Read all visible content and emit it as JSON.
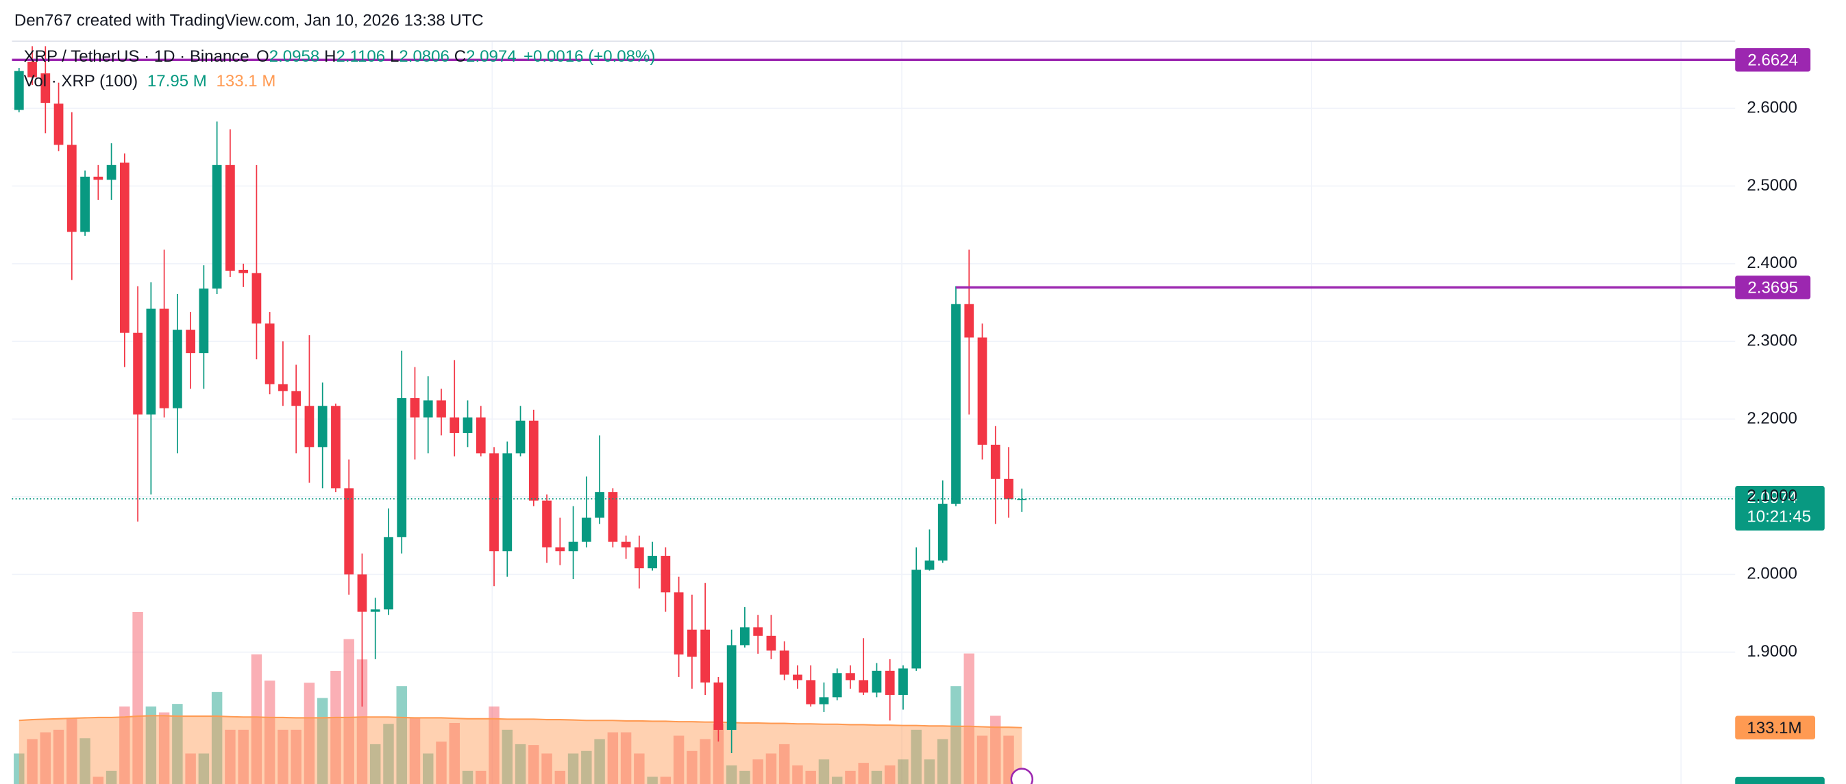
{
  "header": {
    "attribution": "Den767 created with TradingView.com, Jan 10, 2026 13:38 UTC"
  },
  "chart_data": {
    "type": "candlestick",
    "symbol": "XRP / TetherUS · 1D · Binance",
    "ohlc_letters": [
      "O",
      "H",
      "L",
      "C"
    ],
    "change": "+0.0016 (+0.08%)",
    "up_color": "#089981",
    "down_color": "#f23645",
    "open": [
      2.598,
      2.66,
      2.645,
      2.606,
      2.553,
      2.441,
      2.512,
      2.508,
      2.53,
      2.311,
      2.206,
      2.342,
      2.214,
      2.315,
      2.285,
      2.368,
      2.527,
      2.392,
      2.388,
      2.323,
      2.245,
      2.236,
      2.217,
      2.164,
      2.217,
      2.111,
      2.0,
      1.952,
      1.955,
      2.048,
      2.227,
      2.202,
      2.224,
      2.202,
      2.182,
      2.202,
      2.156,
      2.03,
      2.156,
      2.198,
      2.095,
      2.035,
      2.03,
      2.042,
      2.073,
      2.106,
      2.042,
      2.035,
      2.008,
      2.024,
      1.977,
      1.929,
      1.929,
      1.861,
      1.8,
      1.909,
      1.932,
      1.921,
      1.902,
      1.871,
      1.864,
      1.833,
      1.842,
      1.873,
      1.864,
      1.848,
      1.876,
      1.845,
      1.879,
      2.006,
      2.018,
      2.091,
      2.348,
      2.305,
      2.167,
      2.123,
      2.0958
    ],
    "high": [
      2.652,
      2.68,
      2.68,
      2.633,
      2.595,
      2.52,
      2.527,
      2.555,
      2.542,
      2.371,
      2.376,
      2.418,
      2.361,
      2.338,
      2.398,
      2.583,
      2.573,
      2.4,
      2.527,
      2.338,
      2.3,
      2.27,
      2.308,
      2.247,
      2.22,
      2.148,
      2.027,
      1.97,
      2.085,
      2.288,
      2.267,
      2.255,
      2.239,
      2.276,
      2.224,
      2.217,
      2.164,
      2.171,
      2.217,
      2.212,
      2.103,
      2.073,
      2.088,
      2.126,
      2.179,
      2.111,
      2.05,
      2.05,
      2.042,
      2.035,
      1.997,
      1.974,
      1.989,
      1.868,
      1.929,
      1.958,
      1.948,
      1.948,
      1.914,
      1.883,
      1.883,
      1.861,
      1.879,
      1.883,
      1.918,
      1.886,
      1.891,
      1.883,
      2.035,
      2.058,
      2.121,
      2.371,
      2.418,
      2.323,
      2.191,
      2.164,
      2.1106
    ],
    "low": [
      2.595,
      2.63,
      2.568,
      2.545,
      2.379,
      2.436,
      2.482,
      2.482,
      2.267,
      2.068,
      2.103,
      2.202,
      2.156,
      2.239,
      2.239,
      2.361,
      2.383,
      2.37,
      2.277,
      2.232,
      2.217,
      2.156,
      2.118,
      2.111,
      2.106,
      1.974,
      1.83,
      1.891,
      1.948,
      2.027,
      2.148,
      2.156,
      2.179,
      2.152,
      2.164,
      2.152,
      1.985,
      1.997,
      2.152,
      2.088,
      2.015,
      2.012,
      1.994,
      2.035,
      2.065,
      2.035,
      2.02,
      1.982,
      2.005,
      1.952,
      1.868,
      1.853,
      1.845,
      1.785,
      1.77,
      1.906,
      1.898,
      1.891,
      1.864,
      1.853,
      1.83,
      1.823,
      1.838,
      1.853,
      1.845,
      1.842,
      1.812,
      1.826,
      1.876,
      2.005,
      2.015,
      2.088,
      2.206,
      2.148,
      2.065,
      2.073,
      2.0806
    ],
    "close": [
      2.648,
      2.64,
      2.607,
      2.553,
      2.441,
      2.512,
      2.508,
      2.527,
      2.311,
      2.206,
      2.342,
      2.214,
      2.315,
      2.285,
      2.368,
      2.527,
      2.391,
      2.388,
      2.323,
      2.245,
      2.236,
      2.217,
      2.164,
      2.217,
      2.111,
      2.0,
      1.952,
      1.955,
      2.048,
      2.227,
      2.202,
      2.224,
      2.202,
      2.182,
      2.202,
      2.156,
      2.03,
      2.156,
      2.198,
      2.095,
      2.035,
      2.03,
      2.042,
      2.073,
      2.106,
      2.042,
      2.035,
      2.008,
      2.024,
      1.977,
      1.897,
      1.894,
      1.861,
      1.8,
      1.909,
      1.932,
      1.921,
      1.902,
      1.871,
      1.864,
      1.833,
      1.842,
      1.873,
      1.864,
      1.848,
      1.876,
      1.845,
      1.879,
      2.006,
      2.018,
      2.091,
      2.348,
      2.305,
      2.167,
      2.123,
      2.097,
      2.0974
    ],
    "ylim": [
      1.7303,
      2.6864
    ],
    "yticks": [
      {
        "value": 1.9,
        "label": "1.9000"
      },
      {
        "value": 2.0,
        "label": "2.0000"
      },
      {
        "value": 2.1,
        "label": "2.1000"
      },
      {
        "value": 2.2,
        "label": "2.2000"
      },
      {
        "value": 2.3,
        "label": "2.3000"
      },
      {
        "value": 2.4,
        "label": "2.4000"
      },
      {
        "value": 2.5,
        "label": "2.5000"
      },
      {
        "value": 2.6,
        "label": "2.6000"
      }
    ],
    "grid": true,
    "countdown": "10:21:45",
    "hlines": [
      {
        "value": 2.6624,
        "color": "#9c27b0"
      },
      {
        "value": 2.3695,
        "color": "#9c27b0",
        "start_index": 71
      }
    ],
    "volume": {
      "name": "Vol · XRP (100)",
      "vlim": [
        0,
        1753
      ],
      "values": [
        72,
        106,
        122,
        128,
        156,
        108,
        17,
        31,
        183,
        406,
        183,
        169,
        189,
        72,
        72,
        217,
        128,
        128,
        306,
        244,
        128,
        128,
        239,
        203,
        267,
        342,
        294,
        94,
        142,
        231,
        156,
        72,
        100,
        144,
        31,
        31,
        183,
        128,
        94,
        92,
        72,
        31,
        72,
        78,
        106,
        122,
        122,
        72,
        17,
        17,
        114,
        78,
        106,
        142,
        44,
        31,
        58,
        72,
        94,
        44,
        31,
        58,
        17,
        31,
        50,
        31,
        44,
        58,
        128,
        58,
        106,
        231,
        308,
        114,
        161,
        114,
        17.95
      ],
      "last_value_label": "17.95 M",
      "ma": {
        "color": "#ff9a52",
        "values": [
          150,
          152,
          153,
          154,
          155,
          156,
          157,
          157,
          158,
          160,
          161,
          161,
          160,
          160,
          160,
          160,
          159,
          158,
          158,
          157,
          157,
          156,
          156,
          156,
          157,
          157,
          158,
          158,
          158,
          157,
          156,
          156,
          156,
          155,
          154,
          154,
          154,
          153,
          153,
          153,
          152,
          152,
          151,
          150,
          150,
          150,
          149,
          149,
          148,
          148,
          147,
          147,
          146,
          146,
          145,
          144,
          144,
          143,
          143,
          142,
          142,
          141,
          141,
          140,
          140,
          139,
          139,
          138,
          138,
          137,
          137,
          136,
          136,
          135,
          134,
          134,
          133.1
        ],
        "last_value_label": "133.1 M",
        "axis_label": "133.1M"
      }
    }
  }
}
